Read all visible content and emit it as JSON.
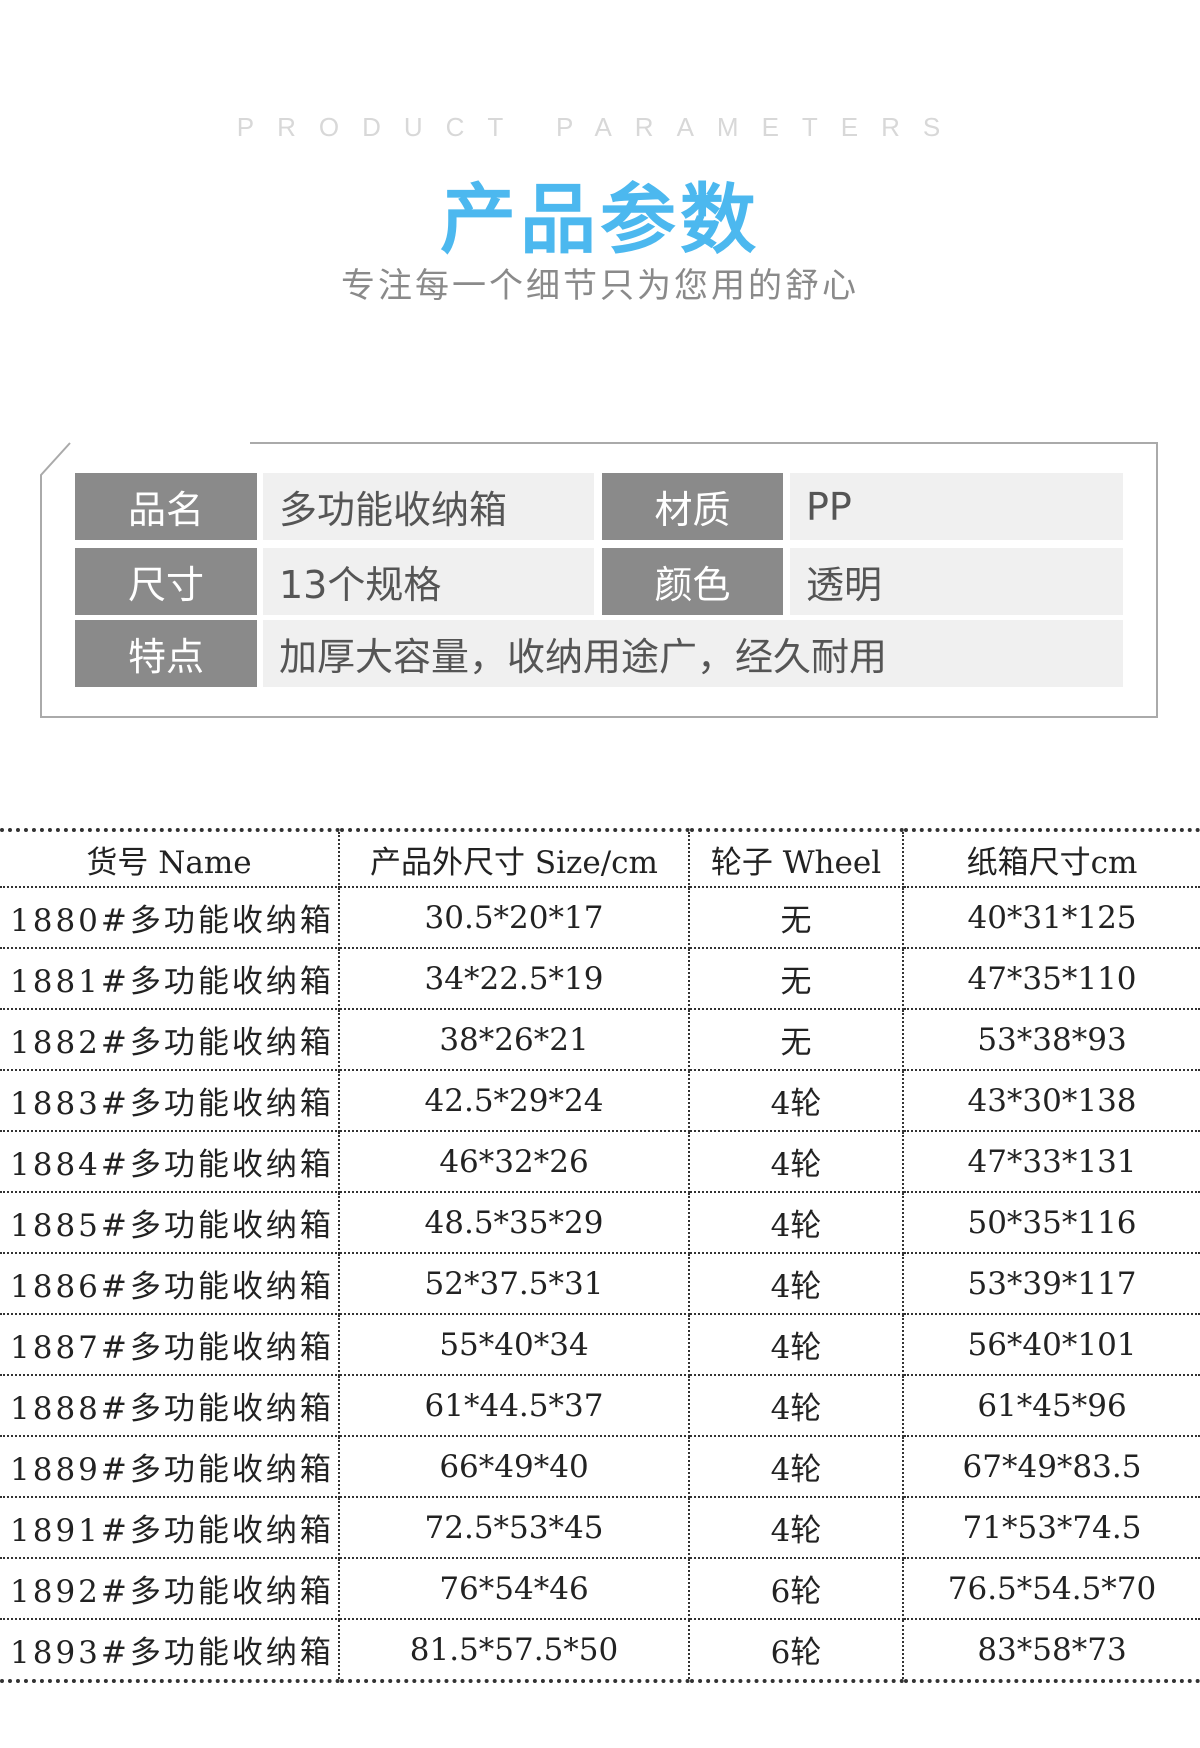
{
  "header": {
    "en_title": "PRODUCT PARAMETERS",
    "title": "产品参数",
    "subtitle": "专注每一个细节只为您用的舒心",
    "title_color": "#4cb8ef"
  },
  "info": {
    "name_label": "品名",
    "name_value": "多功能收纳箱",
    "material_label": "材质",
    "material_value": "PP",
    "size_label": "尺寸",
    "size_value": "13个规格",
    "color_label": "颜色",
    "color_value": "透明",
    "feature_label": "特点",
    "feature_value": "加厚大容量，收纳用途广，经久耐用"
  },
  "table": {
    "headers": [
      "货号 Name",
      "产品外尺寸 Size/cm",
      "轮子 Wheel",
      "纸箱尺寸cm"
    ],
    "rows": [
      [
        "1880#多功能收纳箱",
        "30.5*20*17",
        "无",
        "40*31*125"
      ],
      [
        "1881#多功能收纳箱",
        "34*22.5*19",
        "无",
        "47*35*110"
      ],
      [
        "1882#多功能收纳箱",
        "38*26*21",
        "无",
        "53*38*93"
      ],
      [
        "1883#多功能收纳箱",
        "42.5*29*24",
        "4轮",
        "43*30*138"
      ],
      [
        "1884#多功能收纳箱",
        "46*32*26",
        "4轮",
        "47*33*131"
      ],
      [
        "1885#多功能收纳箱",
        "48.5*35*29",
        "4轮",
        "50*35*116"
      ],
      [
        "1886#多功能收纳箱",
        "52*37.5*31",
        "4轮",
        "53*39*117"
      ],
      [
        "1887#多功能收纳箱",
        "55*40*34",
        "4轮",
        "56*40*101"
      ],
      [
        "1888#多功能收纳箱",
        "61*44.5*37",
        "4轮",
        "61*45*96"
      ],
      [
        "1889#多功能收纳箱",
        "66*49*40",
        "4轮",
        "67*49*83.5"
      ],
      [
        "1891#多功能收纳箱",
        "72.5*53*45",
        "4轮",
        "71*53*74.5"
      ],
      [
        "1892#多功能收纳箱",
        "76*54*46",
        "6轮",
        "76.5*54.5*70"
      ],
      [
        "1893#多功能收纳箱",
        "81.5*57.5*50",
        "6轮",
        "83*58*73"
      ]
    ]
  }
}
